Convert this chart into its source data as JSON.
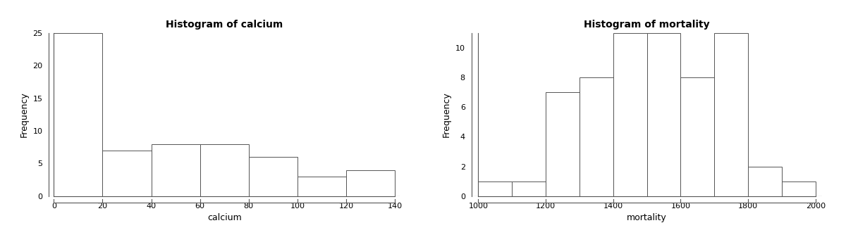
{
  "calcium": {
    "title": "Histogram of calcium",
    "xlabel": "calcium",
    "ylabel": "Frequency",
    "bin_edges": [
      0,
      20,
      40,
      60,
      80,
      100,
      120,
      140
    ],
    "frequencies": [
      25,
      7,
      8,
      8,
      6,
      3,
      4
    ],
    "xlim": [
      -2,
      142
    ],
    "ylim": [
      0,
      25
    ],
    "yticks": [
      0,
      5,
      10,
      15,
      20,
      25
    ],
    "xticks": [
      0,
      20,
      40,
      60,
      80,
      100,
      120,
      140
    ]
  },
  "mortality": {
    "title": "Histogram of mortality",
    "xlabel": "mortality",
    "ylabel": "Frequency",
    "bin_edges": [
      1000,
      1100,
      1200,
      1300,
      1400,
      1500,
      1600,
      1700,
      1800,
      1900,
      2000
    ],
    "frequencies": [
      1,
      1,
      7,
      8,
      11,
      11,
      8,
      11,
      2,
      1
    ],
    "xlim": [
      980,
      2020
    ],
    "ylim": [
      0,
      11
    ],
    "yticks": [
      0,
      2,
      4,
      6,
      8,
      10
    ],
    "xticks": [
      1000,
      1200,
      1400,
      1600,
      1800,
      2000
    ]
  },
  "bg_color": "#ffffff",
  "bar_facecolor": "#ffffff",
  "bar_edgecolor": "#555555",
  "title_fontsize": 10,
  "label_fontsize": 9,
  "tick_fontsize": 8
}
